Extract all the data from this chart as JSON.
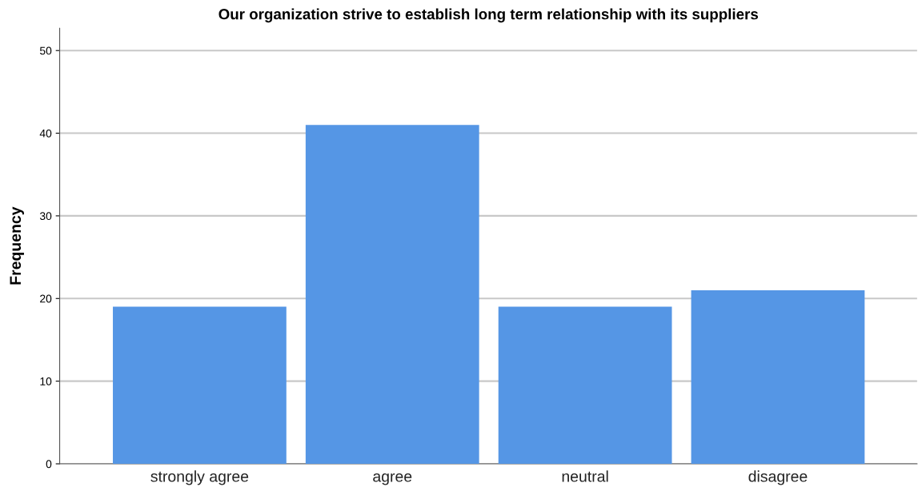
{
  "chart_data": {
    "type": "bar",
    "title": "Our organization strive to establish long term relationship with its suppliers",
    "ylabel": "Frequency",
    "categories": [
      "strongly agree",
      "agree",
      "neutral",
      "disagree"
    ],
    "values": [
      19,
      41,
      19,
      21
    ],
    "color": "#5596e5",
    "ylim": [
      0,
      52.7
    ],
    "yticks": [
      0,
      10,
      20,
      30,
      40,
      50
    ],
    "grid": "y",
    "legend": false
  }
}
